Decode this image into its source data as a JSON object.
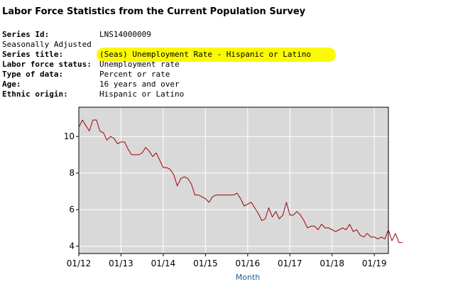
{
  "page": {
    "title": "Labor Force Statistics from the Current Population Survey",
    "meta": [
      {
        "label": "Series Id:",
        "value": "LNS14000009",
        "bold": true
      },
      {
        "label": "Seasonally Adjusted",
        "value": "",
        "bold": false
      },
      {
        "label": "Series title:",
        "value": "(Seas) Unemployment Rate - Hispanic or Latino",
        "bold": true,
        "highlight": true
      },
      {
        "label": "Labor force status:",
        "value": "Unemployment rate",
        "bold": true
      },
      {
        "label": "Type of data:",
        "value": "Percent or rate",
        "bold": true
      },
      {
        "label": "Age:",
        "value": "16 years and over",
        "bold": true
      },
      {
        "label": "Ethnic origin:",
        "value": "Hispanic or Latino",
        "bold": true
      }
    ],
    "highlight_color": "#fbfa04"
  },
  "chart_data": {
    "type": "line",
    "title": "",
    "xlabel": "Month",
    "ylabel": "",
    "x_start": "2012-01",
    "xlim": [
      0,
      88
    ],
    "ylim": [
      3.6,
      11.6
    ],
    "y_ticks": [
      4,
      6,
      8,
      10
    ],
    "x_ticks": [
      {
        "index": 0,
        "label": "01/12"
      },
      {
        "index": 12,
        "label": "01/13"
      },
      {
        "index": 24,
        "label": "01/14"
      },
      {
        "index": 36,
        "label": "01/15"
      },
      {
        "index": 48,
        "label": "01/16"
      },
      {
        "index": 60,
        "label": "01/17"
      },
      {
        "index": 72,
        "label": "01/18"
      },
      {
        "index": 84,
        "label": "01/19"
      }
    ],
    "grid": true,
    "colors": {
      "background": "#d9d9d9",
      "grid": "#ffffff",
      "line": "#a20000",
      "axis_title": "#1e5d94"
    },
    "series": [
      {
        "name": "Unemployment Rate - Hispanic or Latino",
        "values": [
          10.5,
          10.9,
          10.6,
          10.3,
          10.9,
          10.9,
          10.3,
          10.2,
          9.8,
          10.0,
          9.9,
          9.6,
          9.7,
          9.7,
          9.3,
          9.0,
          9.0,
          9.0,
          9.1,
          9.4,
          9.2,
          8.9,
          9.1,
          8.7,
          8.3,
          8.3,
          8.2,
          7.9,
          7.3,
          7.7,
          7.8,
          7.7,
          7.4,
          6.8,
          6.8,
          6.7,
          6.6,
          6.4,
          6.7,
          6.8,
          6.8,
          6.8,
          6.8,
          6.8,
          6.8,
          6.9,
          6.6,
          6.2,
          6.3,
          6.4,
          6.1,
          5.8,
          5.4,
          5.5,
          6.1,
          5.6,
          5.9,
          5.5,
          5.7,
          6.4,
          5.7,
          5.7,
          5.9,
          5.7,
          5.4,
          5.0,
          5.1,
          5.1,
          4.9,
          5.2,
          5.0,
          5.0,
          4.9,
          4.8,
          4.9,
          5.0,
          4.9,
          5.2,
          4.8,
          4.9,
          4.6,
          4.5,
          4.7,
          4.5,
          4.5,
          4.4,
          4.5,
          4.4,
          4.9,
          4.3,
          4.7,
          4.2,
          4.2
        ]
      }
    ]
  }
}
